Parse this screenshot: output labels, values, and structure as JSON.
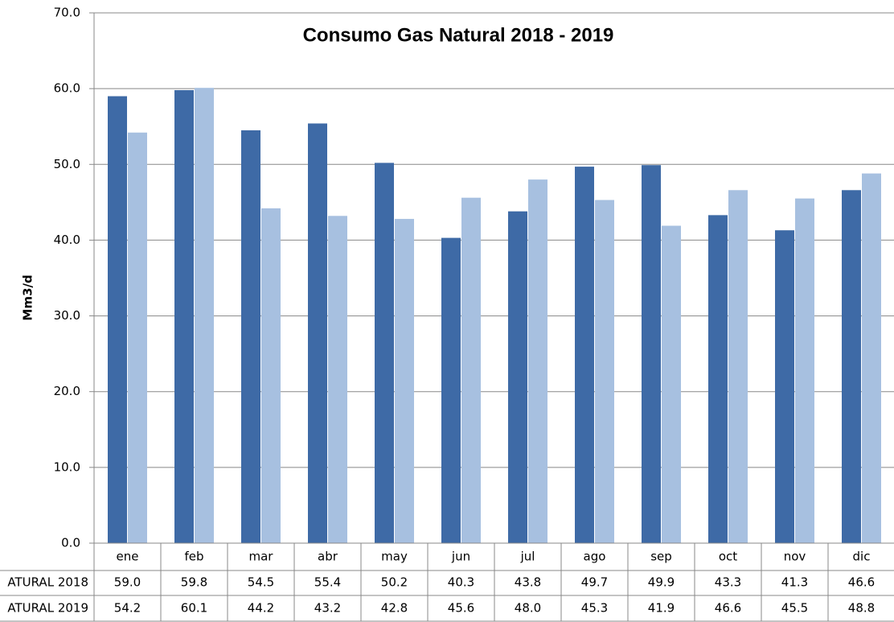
{
  "chart_data": {
    "type": "bar",
    "title": "Consumo Gas Natural 2018 - 2019",
    "y_label": "Mm3/d",
    "categories": [
      "ene",
      "feb",
      "mar",
      "abr",
      "may",
      "jun",
      "jul",
      "ago",
      "sep",
      "oct",
      "nov",
      "dic"
    ],
    "series": [
      {
        "name": "ATURAL 2018",
        "color": "#3e6aa6",
        "values": [
          59.0,
          59.8,
          54.5,
          55.4,
          50.2,
          40.3,
          43.8,
          49.7,
          49.9,
          43.3,
          41.3,
          46.6
        ],
        "value_labels": [
          "59.0",
          "59.8",
          "54.5",
          "55.4",
          "50.2",
          "40.3",
          "43.8",
          "49.7",
          "49.9",
          "43.3",
          "41.3",
          "46.6"
        ]
      },
      {
        "name": "ATURAL 2019",
        "color": "#a7c0e0",
        "values": [
          54.2,
          60.1,
          44.2,
          43.2,
          42.8,
          45.6,
          48.0,
          45.3,
          41.9,
          46.6,
          45.5,
          48.8
        ],
        "value_labels": [
          "54.2",
          "60.1",
          "44.2",
          "43.2",
          "42.8",
          "45.6",
          "48.0",
          "45.3",
          "41.9",
          "46.6",
          "45.5",
          "48.8"
        ]
      }
    ],
    "ylim": [
      0,
      70
    ],
    "yticks": [
      {
        "value": 0,
        "label": "0.0"
      },
      {
        "value": 10,
        "label": "10.0"
      },
      {
        "value": 20,
        "label": "20.0"
      },
      {
        "value": 30,
        "label": "30.0"
      },
      {
        "value": 40,
        "label": "40.0"
      },
      {
        "value": 50,
        "label": "50.0"
      },
      {
        "value": 60,
        "label": "60.0"
      },
      {
        "value": 70,
        "label": "70.0"
      }
    ],
    "grid": true
  }
}
